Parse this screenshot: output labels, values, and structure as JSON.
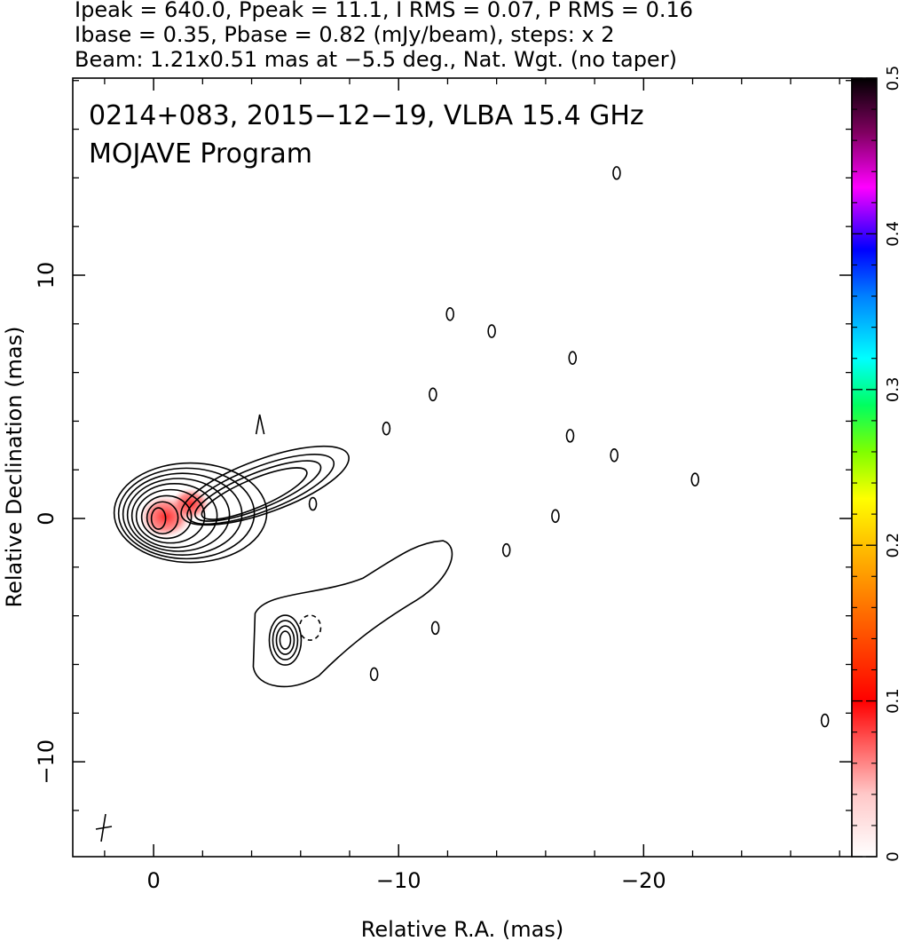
{
  "header": {
    "line1": "Ipeak = 640.0, Ppeak = 11.1, I RMS = 0.07, P RMS = 0.16",
    "line2": "Ibase = 0.35, Pbase = 0.82 (mJy/beam), steps: x 2",
    "line3": "Beam: 1.21x0.51 mas at −5.5 deg., Nat. Wgt. (no taper)"
  },
  "chart_data": {
    "type": "contour",
    "title": "0214+083, 2015−12−19, VLBA 15.4 GHz",
    "subtitle": "MOJAVE Program",
    "xlabel": "Relative R.A. (mas)",
    "ylabel": "Relative Declination (mas)",
    "xlim": [
      3.3,
      -28.5
    ],
    "ylim": [
      -13.9,
      18.1
    ],
    "x_ticks": [
      0,
      -10,
      -20
    ],
    "x_tick_labels": [
      "0",
      "−10",
      "−20"
    ],
    "y_ticks": [
      10,
      0,
      -10
    ],
    "y_tick_labels": [
      "10",
      "0",
      "−10"
    ],
    "colorbar": {
      "range": [
        0,
        0.5
      ],
      "ticks": [
        0,
        0.1,
        0.2,
        0.3,
        0.4,
        0.5
      ],
      "tick_labels": [
        "0",
        "0.1",
        "0.2",
        "0.3",
        "0.4",
        "0.5"
      ]
    },
    "core": {
      "x": -0.2,
      "y": 0.0
    },
    "secondary_component": {
      "x": -5.3,
      "y": -5.0
    },
    "polarized_peak": {
      "x": -1.5,
      "y": 0.6,
      "value": 0.1
    },
    "isolated_contours": [
      {
        "x": -18.9,
        "y": 14.2
      },
      {
        "x": -12.1,
        "y": 8.4
      },
      {
        "x": -13.8,
        "y": 7.7
      },
      {
        "x": -17.1,
        "y": 6.6
      },
      {
        "x": -11.4,
        "y": 5.1
      },
      {
        "x": -9.5,
        "y": 3.7
      },
      {
        "x": -17.0,
        "y": 3.4
      },
      {
        "x": -18.8,
        "y": 2.6
      },
      {
        "x": -22.1,
        "y": 1.6
      },
      {
        "x": -6.5,
        "y": 0.6
      },
      {
        "x": -16.4,
        "y": 0.1
      },
      {
        "x": -14.4,
        "y": -1.3
      },
      {
        "x": -11.5,
        "y": -4.5
      },
      {
        "x": -9.0,
        "y": -6.4
      },
      {
        "x": -27.4,
        "y": -8.3
      }
    ]
  }
}
